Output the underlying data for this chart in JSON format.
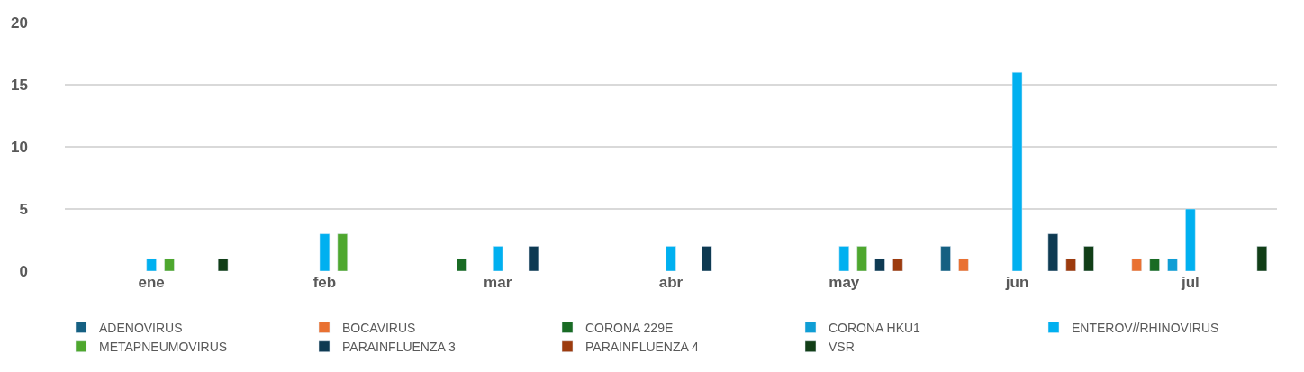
{
  "chart_data": {
    "type": "bar",
    "categories": [
      "ene",
      "feb",
      "mar",
      "abr",
      "may",
      "jun",
      "jul"
    ],
    "series": [
      {
        "name": "ADENOVIRUS",
        "color": "#156082",
        "values": [
          null,
          null,
          null,
          null,
          null,
          2,
          null
        ]
      },
      {
        "name": "BOCAVIRUS",
        "color": "#e97132",
        "values": [
          null,
          null,
          null,
          null,
          null,
          1,
          1
        ]
      },
      {
        "name": "CORONA 229E",
        "color": "#196b24",
        "values": [
          null,
          null,
          1,
          null,
          null,
          null,
          1
        ]
      },
      {
        "name": "CORONA HKU1",
        "color": "#0f9ed5",
        "values": [
          null,
          null,
          null,
          null,
          null,
          null,
          1
        ]
      },
      {
        "name": "ENTEROV//RHINOVIRUS",
        "color": "#00b0f0",
        "values": [
          1,
          3,
          2,
          2,
          2,
          16,
          5
        ]
      },
      {
        "name": "METAPNEUMOVIRUS",
        "color": "#4ea72e",
        "values": [
          1,
          3,
          null,
          null,
          2,
          null,
          null
        ]
      },
      {
        "name": "PARAINFLUENZA 3",
        "color": "#0e3a52",
        "values": [
          null,
          null,
          2,
          2,
          1,
          3,
          null
        ]
      },
      {
        "name": "PARAINFLUENZA 4",
        "color": "#9c3b0e",
        "values": [
          null,
          null,
          null,
          null,
          1,
          1,
          null
        ]
      },
      {
        "name": "VSR",
        "color": "#113e17",
        "values": [
          1,
          null,
          null,
          null,
          null,
          2,
          2
        ]
      }
    ],
    "ylim": [
      0,
      20
    ],
    "yticks": [
      0,
      5,
      10,
      15,
      20
    ],
    "grid": "y",
    "legend": "bottom"
  }
}
